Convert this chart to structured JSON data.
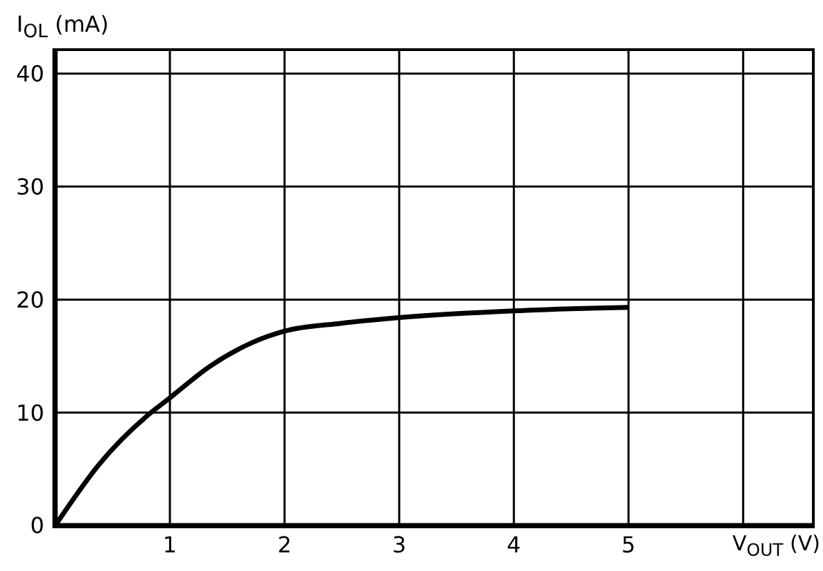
{
  "chart_data": {
    "type": "line",
    "xlabel": "V$_{OUT}$ (V)",
    "ylabel": "I$_{OL}$ (mA)",
    "x": [
      0,
      0.39,
      0.8,
      1,
      1.35,
      1.72,
      2,
      2.5,
      3,
      4,
      5
    ],
    "series": [
      {
        "color": "#000000",
        "values": [
          0,
          5.5,
          9.7,
          11.3,
          14.1,
          16.2,
          17.2,
          17.9,
          18.4,
          19.0,
          19.3
        ]
      }
    ],
    "xlim": [
      0,
      6.6
    ],
    "xticks": [
      1,
      2,
      3,
      4,
      5,
      {
        "value": 6,
        "label": null
      }
    ],
    "ylim": [
      0,
      42
    ],
    "yticks": [
      0,
      10,
      20,
      30,
      40
    ],
    "grid": true,
    "marker": "none",
    "line_style": "solid"
  }
}
